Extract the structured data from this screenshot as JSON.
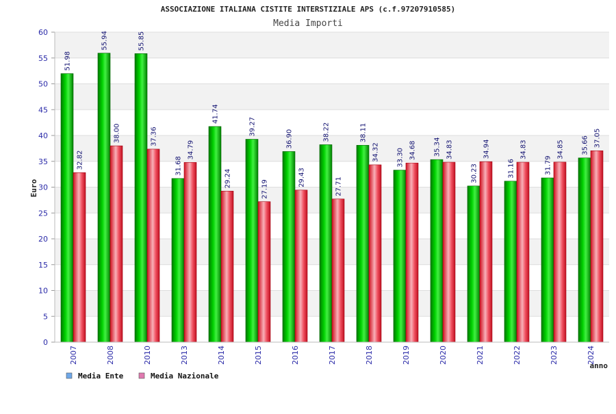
{
  "chart_data": {
    "type": "bar",
    "title": "ASSOCIAZIONE ITALIANA CISTITE INTERSTIZIALE APS (c.f.97207910585)",
    "subtitle": "Media Importi",
    "xlabel": "anno",
    "ylabel": "Euro",
    "ylim": [
      0,
      60
    ],
    "yticks": [
      "0",
      "5",
      "10",
      "15",
      "20",
      "25",
      "30",
      "35",
      "40",
      "45",
      "50",
      "55",
      "60"
    ],
    "categories": [
      "2007",
      "2008",
      "2010",
      "2013",
      "2014",
      "2015",
      "2016",
      "2017",
      "2018",
      "2019",
      "2020",
      "2021",
      "2022",
      "2023",
      "2024"
    ],
    "series": [
      {
        "name": "Media Ente",
        "color": "#00c000",
        "legend_color": "#6fa8e8",
        "values": [
          51.98,
          55.94,
          55.85,
          31.68,
          41.74,
          39.27,
          36.9,
          38.22,
          38.11,
          33.3,
          35.34,
          30.23,
          31.16,
          31.79,
          35.66
        ],
        "labels": [
          "51.98",
          "55.94",
          "55.85",
          "31.68",
          "41.74",
          "39.27",
          "36.90",
          "38.22",
          "38.11",
          "33.30",
          "35.34",
          "30.23",
          "31.16",
          "31.79",
          "35.66"
        ]
      },
      {
        "name": "Media Nazionale",
        "color": "#e8202a",
        "legend_color": "#e07ab0",
        "values": [
          32.82,
          38.0,
          37.36,
          34.79,
          29.24,
          27.19,
          29.43,
          27.71,
          34.32,
          34.68,
          34.83,
          34.94,
          34.83,
          34.85,
          37.05
        ],
        "labels": [
          "32.82",
          "38.00",
          "37.36",
          "34.79",
          "29.24",
          "27.19",
          "29.43",
          "27.71",
          "34.32",
          "34.68",
          "34.83",
          "34.94",
          "34.83",
          "34.85",
          "37.05"
        ]
      }
    ],
    "grid": true,
    "legend_position": "bottom-left"
  }
}
